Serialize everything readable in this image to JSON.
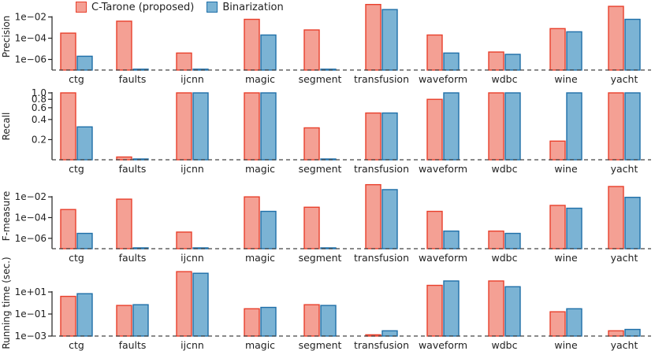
{
  "legend": {
    "series_a": "C-Tarone (proposed)",
    "series_b": "Binarization"
  },
  "colors": {
    "series_a_fill": "#f4a094",
    "series_a_stroke": "#e8402c",
    "series_b_fill": "#7bb3d4",
    "series_b_stroke": "#1f6fa8",
    "axis": "#222222",
    "dashed": "#444444"
  },
  "chart_data": [
    {
      "type": "bar",
      "ylabel": "Precision",
      "yscale": "log",
      "ylim": [
        1e-07,
        0.2
      ],
      "ticks": [
        {
          "value": 0.01,
          "label": "1e−02"
        },
        {
          "value": 0.0001,
          "label": "1e−04"
        },
        {
          "value": 1e-06,
          "label": "1e−06"
        }
      ],
      "categories": [
        "ctg",
        "faults",
        "ijcnn",
        "magic",
        "segment",
        "transfusion",
        "waveform",
        "wdbc",
        "wine",
        "yacht"
      ],
      "series": [
        {
          "name": "C-Tarone (proposed)",
          "values": [
            0.0003,
            0.004,
            4e-06,
            0.006,
            0.0006,
            0.15,
            0.0002,
            5e-06,
            0.0008,
            0.1
          ]
        },
        {
          "name": "Binarization",
          "values": [
            2e-06,
            1.2e-07,
            1.2e-07,
            0.0002,
            1.2e-07,
            0.05,
            4e-06,
            3e-06,
            0.0004,
            0.006
          ]
        }
      ]
    },
    {
      "type": "bar",
      "ylabel": "Recall",
      "yscale": "log",
      "ylim": [
        0.1,
        1.0
      ],
      "ticks": [
        {
          "value": 1.0,
          "label": "1.0"
        },
        {
          "value": 0.8,
          "label": "0.8"
        },
        {
          "value": 0.6,
          "label": "0.6"
        },
        {
          "value": 0.4,
          "label": "0.4"
        },
        {
          "value": 0.2,
          "label": "0.2"
        }
      ],
      "categories": [
        "ctg",
        "faults",
        "ijcnn",
        "magic",
        "segment",
        "transfusion",
        "waveform",
        "wdbc",
        "wine",
        "yacht"
      ],
      "series": [
        {
          "name": "C-Tarone (proposed)",
          "values": [
            1.0,
            0.11,
            1.0,
            1.0,
            0.3,
            0.5,
            0.8,
            1.0,
            0.19,
            1.0
          ]
        },
        {
          "name": "Binarization",
          "values": [
            0.31,
            0.102,
            1.0,
            1.0,
            0.102,
            0.5,
            1.0,
            1.0,
            1.0,
            1.0
          ]
        }
      ]
    },
    {
      "type": "bar",
      "ylabel": "F-measure",
      "yscale": "log",
      "ylim": [
        1e-07,
        0.2
      ],
      "ticks": [
        {
          "value": 0.01,
          "label": "1e−02"
        },
        {
          "value": 0.0001,
          "label": "1e−04"
        },
        {
          "value": 1e-06,
          "label": "1e−06"
        }
      ],
      "categories": [
        "ctg",
        "faults",
        "ijcnn",
        "magic",
        "segment",
        "transfusion",
        "waveform",
        "wdbc",
        "wine",
        "yacht"
      ],
      "series": [
        {
          "name": "C-Tarone (proposed)",
          "values": [
            0.0006,
            0.006,
            4e-06,
            0.01,
            0.001,
            0.15,
            0.0004,
            5e-06,
            0.0015,
            0.1
          ]
        },
        {
          "name": "Binarization",
          "values": [
            3e-06,
            1.2e-07,
            1.2e-07,
            0.0004,
            1.2e-07,
            0.05,
            5e-06,
            3e-06,
            0.0008,
            0.009
          ]
        }
      ]
    },
    {
      "type": "bar",
      "ylabel": "Running time (sec.)",
      "yscale": "log",
      "ylim": [
        0.001,
        1000
      ],
      "ticks": [
        {
          "value": 10,
          "label": "1e+01"
        },
        {
          "value": 0.1,
          "label": "1e−01"
        },
        {
          "value": 0.001,
          "label": "1e−03"
        }
      ],
      "categories": [
        "ctg",
        "faults",
        "ijcnn",
        "magic",
        "segment",
        "transfusion",
        "waveform",
        "wdbc",
        "wine",
        "yacht"
      ],
      "series": [
        {
          "name": "C-Tarone (proposed)",
          "values": [
            4,
            0.6,
            700,
            0.3,
            0.7,
            0.0013,
            40,
            100,
            0.16,
            0.003
          ]
        },
        {
          "name": "Binarization",
          "values": [
            7,
            0.7,
            500,
            0.4,
            0.6,
            0.003,
            100,
            30,
            0.3,
            0.004
          ]
        }
      ]
    }
  ]
}
